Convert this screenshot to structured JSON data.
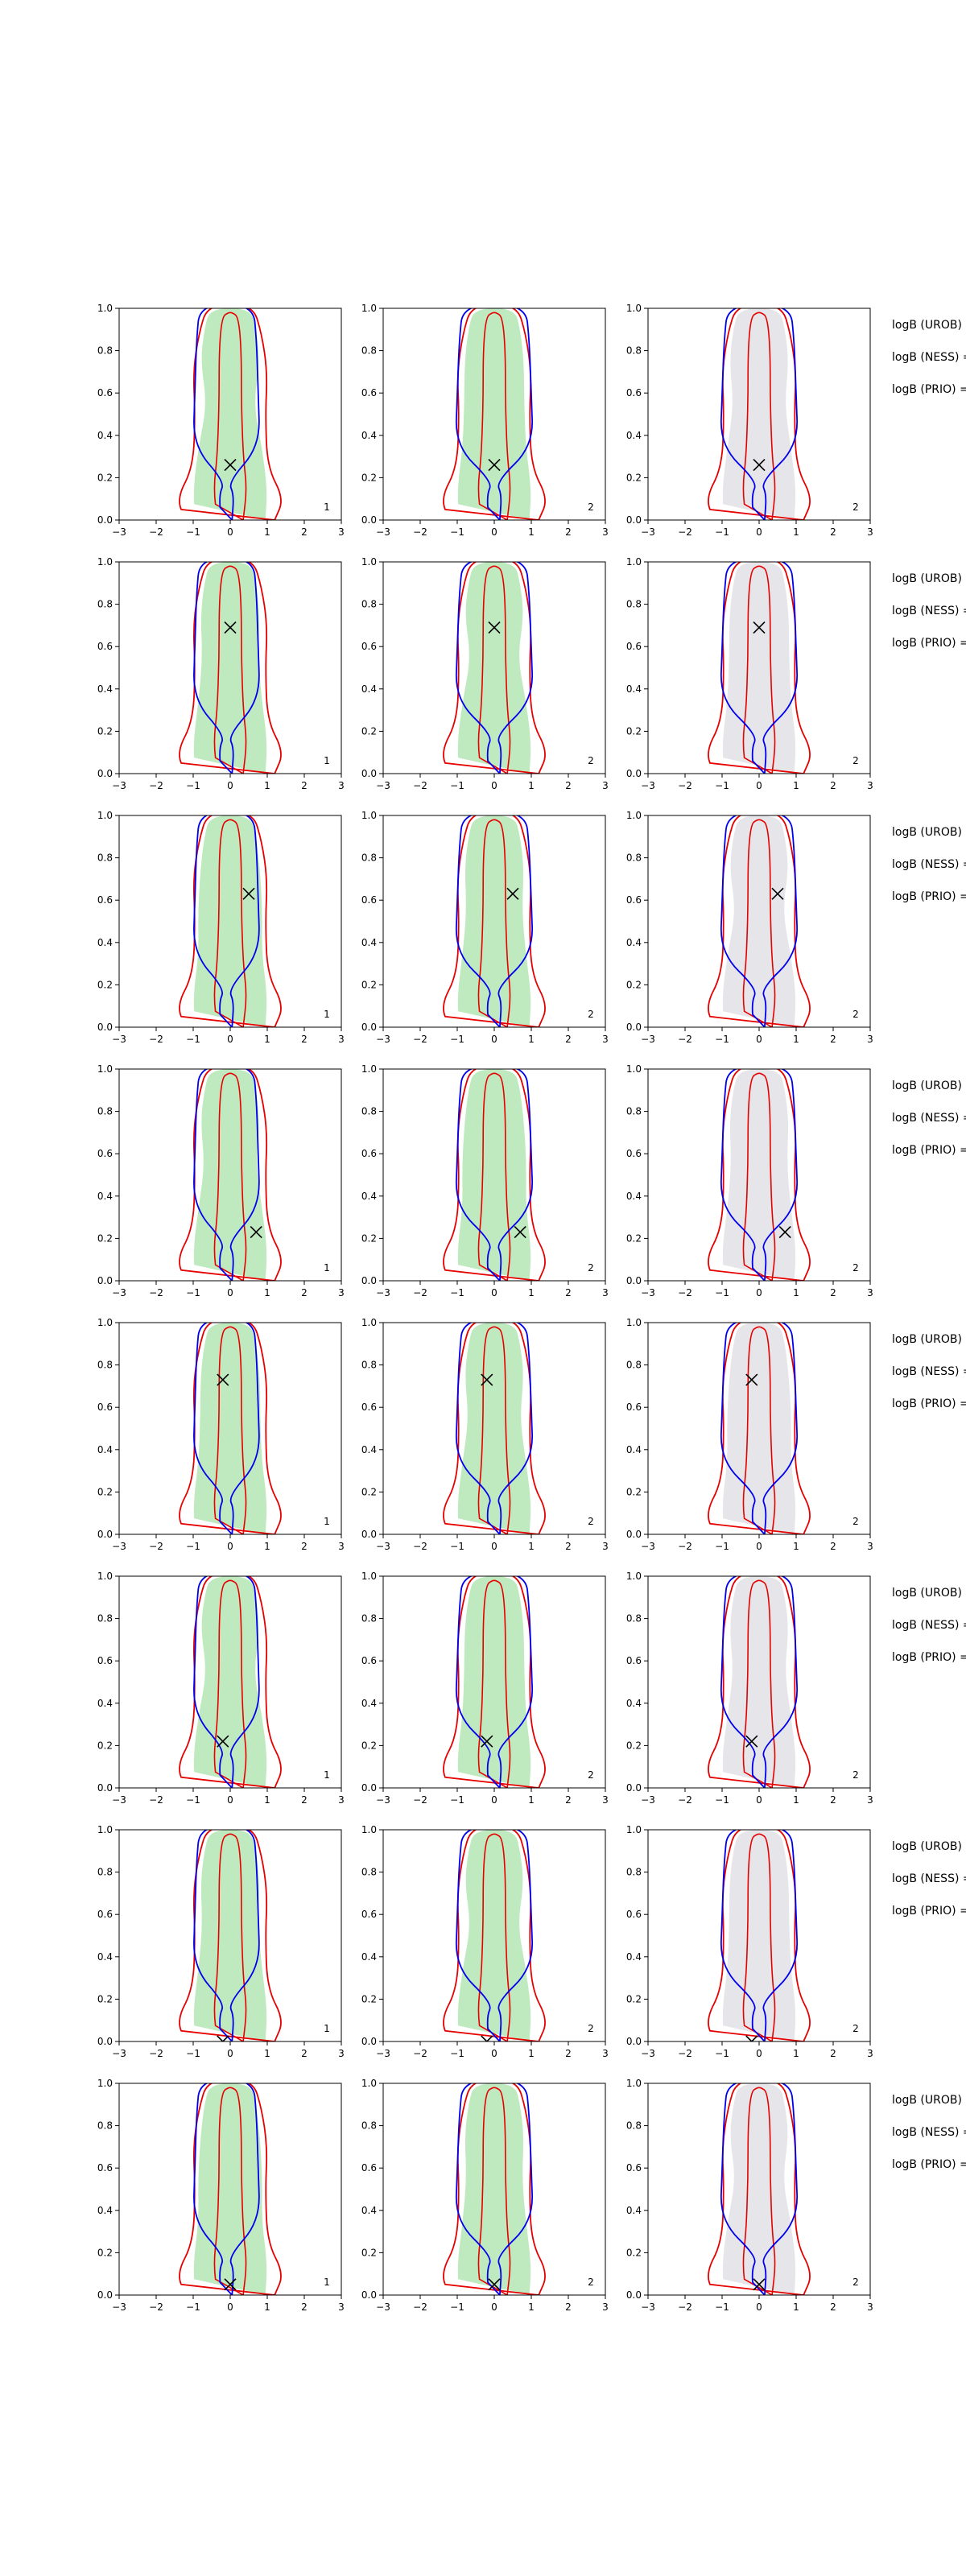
{
  "figure": {
    "background": "#ffffff"
  },
  "style": {
    "colors": {
      "green_fill": "#bfeabf",
      "gray_fill": "#e6e6ea",
      "red_line": "#e60000",
      "blue_line": "#0000ee",
      "marker": "#000000"
    }
  },
  "chart_data": {
    "type": "contour-grid",
    "rows": 8,
    "cols": 3,
    "xlim": [
      -3,
      3
    ],
    "ylim": [
      0,
      1
    ],
    "xticks": [
      "−3",
      "−2",
      "−1",
      "0",
      "1",
      "2",
      "3"
    ],
    "yticks": [
      "0.0",
      "0.2",
      "0.4",
      "0.6",
      "0.8",
      "1.0"
    ],
    "grid": false,
    "fill_per_column": [
      "green",
      "green",
      "gray"
    ],
    "column_corner_labels": [
      "1",
      "2",
      "2"
    ],
    "side_labels": [
      "logB (UROB) =",
      "logB (NESS) =",
      "logB (PRIO) ="
    ],
    "markers": [
      {
        "row": 1,
        "x": 0.0,
        "y": 0.26
      },
      {
        "row": 2,
        "x": 0.0,
        "y": 0.69
      },
      {
        "row": 3,
        "x": 0.5,
        "y": 0.63
      },
      {
        "row": 4,
        "x": 0.7,
        "y": 0.23
      },
      {
        "row": 5,
        "x": -0.2,
        "y": 0.73
      },
      {
        "row": 6,
        "x": -0.2,
        "y": 0.22
      },
      {
        "row": 7,
        "x": -0.2,
        "y": 0.0
      },
      {
        "row": 8,
        "x": 0.0,
        "y": 0.05
      }
    ]
  }
}
